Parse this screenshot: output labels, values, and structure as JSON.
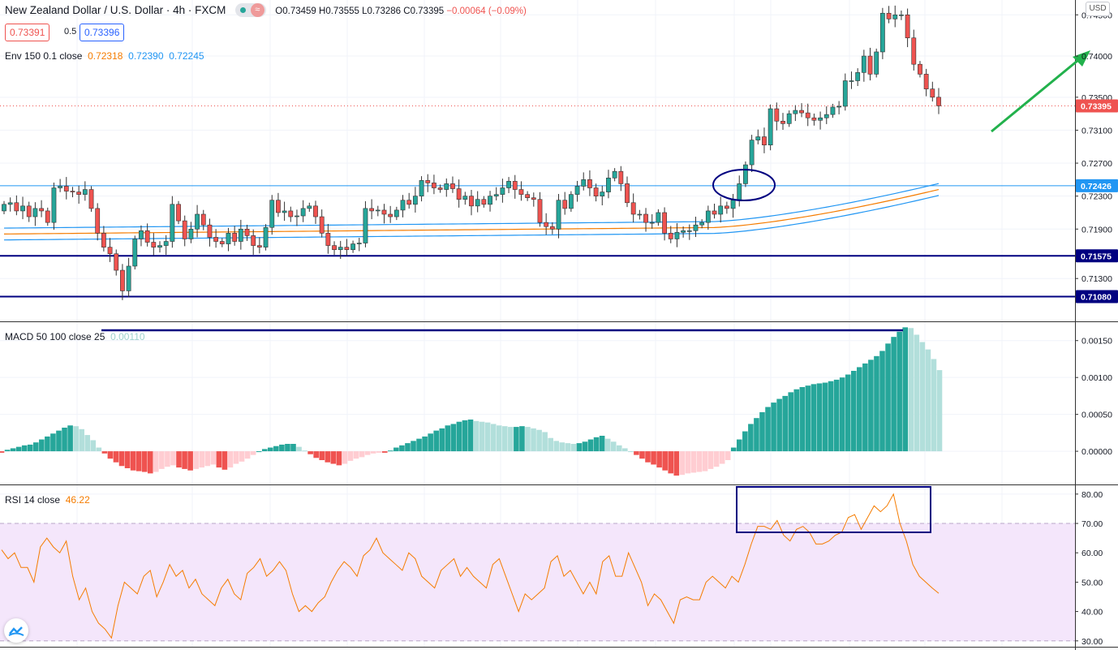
{
  "header": {
    "title": "New Zealand Dollar / U.S. Dollar · 4h · FXCM",
    "ohlc": {
      "o": "O0.73459",
      "h": "H0.73555",
      "l": "L0.73286",
      "c": "C0.73395",
      "chg": "−0.00064 (−0.09%)"
    },
    "bid": "0.73391",
    "spread": "0.5",
    "ask": "0.73396",
    "currency": "USD"
  },
  "indicators": {
    "envelope": {
      "label": "Env 150 0.1 close",
      "basis": "0.72318",
      "upper": "0.72390",
      "lower": "0.72245"
    },
    "macd": {
      "label": "MACD 50 100 close 25",
      "value": "0.00110"
    },
    "rsi": {
      "label": "RSI 14 close",
      "value": "46.22"
    }
  },
  "colors": {
    "up": "#26a69a",
    "down": "#ef5350",
    "basis": "#f57c00",
    "band": "#2196f3",
    "level": "#000080",
    "rsi_line": "#f57c00",
    "rsi_fill": "#f4e6fb"
  },
  "chart_data": [
    {
      "type": "candlestick",
      "title": "New Zealand Dollar / U.S. Dollar · 4h · FXCM",
      "ylim": [
        0.7078,
        0.7468
      ],
      "y_ticks": [
        "0.74500",
        "0.74000",
        "0.73500",
        "0.73100",
        "0.72700",
        "0.72300",
        "0.71900",
        "0.71300",
        "0.71080"
      ],
      "price_labels": [
        {
          "value": "0.73395",
          "kind": "last",
          "color": "#ef5350"
        },
        {
          "value": "0.72426",
          "kind": "level",
          "color": "#2196f3"
        },
        {
          "value": "0.71575",
          "kind": "level",
          "color": "#000080"
        },
        {
          "value": "0.71080",
          "kind": "level",
          "color": "#000080"
        }
      ],
      "levels": [
        0.72426,
        0.71575,
        0.7108
      ],
      "closes": [
        0.722,
        0.7222,
        0.7212,
        0.7218,
        0.7205,
        0.7215,
        0.7212,
        0.7198,
        0.724,
        0.7242,
        0.7236,
        0.7235,
        0.7232,
        0.7238,
        0.7215,
        0.7185,
        0.7168,
        0.716,
        0.714,
        0.7115,
        0.7145,
        0.7178,
        0.7188,
        0.7174,
        0.7168,
        0.717,
        0.7175,
        0.722,
        0.72,
        0.7178,
        0.719,
        0.7208,
        0.7195,
        0.718,
        0.7175,
        0.7172,
        0.7185,
        0.7175,
        0.719,
        0.7182,
        0.717,
        0.7168,
        0.7192,
        0.7225,
        0.721,
        0.7212,
        0.7205,
        0.7206,
        0.7215,
        0.7218,
        0.7205,
        0.7185,
        0.717,
        0.7165,
        0.7168,
        0.7165,
        0.7172,
        0.7173,
        0.7215,
        0.7212,
        0.7213,
        0.7208,
        0.7205,
        0.7213,
        0.7225,
        0.722,
        0.723,
        0.7249,
        0.7246,
        0.724,
        0.7238,
        0.7245,
        0.7239,
        0.7226,
        0.723,
        0.7218,
        0.7226,
        0.722,
        0.723,
        0.7232,
        0.724,
        0.7248,
        0.7238,
        0.7232,
        0.7228,
        0.7226,
        0.7198,
        0.7193,
        0.719,
        0.7225,
        0.7215,
        0.7232,
        0.7242,
        0.725,
        0.724,
        0.723,
        0.7235,
        0.7252,
        0.726,
        0.7245,
        0.7222,
        0.7208,
        0.7208,
        0.7198,
        0.7198,
        0.721,
        0.7185,
        0.7178,
        0.7186,
        0.7188,
        0.7188,
        0.7195,
        0.7198,
        0.7212,
        0.7208,
        0.7218,
        0.7215,
        0.7225,
        0.7245,
        0.7268,
        0.7298,
        0.7302,
        0.7292,
        0.7336,
        0.7321,
        0.7318,
        0.733,
        0.7334,
        0.7331,
        0.7325,
        0.7322,
        0.7325,
        0.7329,
        0.7338,
        0.7339,
        0.737,
        0.737,
        0.738,
        0.74,
        0.7378,
        0.7405,
        0.7452,
        0.7445,
        0.745,
        0.745,
        0.7422,
        0.739,
        0.7378,
        0.736,
        0.735,
        0.73395
      ],
      "envelope_series": [
        "basis",
        "upper",
        "lower"
      ]
    },
    {
      "type": "bar",
      "title": "MACD 50 100 close 25",
      "ylim": [
        -0.00045,
        0.00175
      ],
      "y_ticks": [
        "0.00150",
        "0.00100",
        "0.00050",
        "0.00000"
      ],
      "values": [
        -2e-05,
        2e-05,
        4e-05,
        6e-05,
        8e-05,
        9e-05,
        0.00012,
        0.00016,
        0.0002,
        0.00024,
        0.00028,
        0.00032,
        0.00035,
        0.00034,
        0.0003,
        0.00022,
        0.00015,
        5e-05,
        -3e-05,
        -0.0001,
        -0.00015,
        -0.0002,
        -0.00023,
        -0.00026,
        -0.00027,
        -0.00028,
        -0.0003,
        -0.00028,
        -0.00024,
        -0.00021,
        -0.00019,
        -0.00022,
        -0.00024,
        -0.00026,
        -0.00024,
        -0.00022,
        -0.0002,
        -0.00018,
        -0.00022,
        -0.00025,
        -0.00022,
        -0.00017,
        -0.00014,
        -0.0001,
        -5e-05,
        0.0,
        3e-05,
        5e-05,
        7e-05,
        9e-05,
        0.0001,
        0.0001,
        6e-05,
        1e-05,
        -4e-05,
        -9e-05,
        -0.00012,
        -0.00015,
        -0.00017,
        -0.00019,
        -0.00017,
        -0.00013,
        -0.0001,
        -8e-05,
        -5e-05,
        -3e-05,
        -2e-05,
        -2e-05,
        1e-05,
        5e-05,
        8e-05,
        0.00011,
        0.00014,
        0.00017,
        0.0002,
        0.00024,
        0.00028,
        0.00031,
        0.00035,
        0.00037,
        0.0004,
        0.00042,
        0.00043,
        0.00041,
        0.0004,
        0.00039,
        0.00037,
        0.00035,
        0.00034,
        0.00033,
        0.00033,
        0.00034,
        0.00033,
        0.00031,
        0.00029,
        0.00026,
        0.00018,
        0.00014,
        0.00012,
        0.00011,
        0.0001,
        0.00011,
        0.00013,
        0.00016,
        0.00019,
        0.00021,
        0.00017,
        0.00013,
        8e-05,
        4e-05,
        0.0,
        -5e-05,
        -0.0001,
        -0.00015,
        -0.00018,
        -0.00022,
        -0.00026,
        -0.0003,
        -0.00033,
        -0.00032,
        -0.0003,
        -0.00029,
        -0.00028,
        -0.00027,
        -0.00024,
        -0.00021,
        -0.00017,
        -0.00012,
        5e-05,
        0.00016,
        0.00027,
        0.00037,
        0.00045,
        0.00053,
        0.0006,
        0.00066,
        0.00071,
        0.00075,
        0.0008,
        0.00084,
        0.00087,
        0.00089,
        0.00091,
        0.00092,
        0.00093,
        0.00095,
        0.00097,
        0.001,
        0.00104,
        0.00109,
        0.00114,
        0.00119,
        0.00124,
        0.00129,
        0.00136,
        0.00146,
        0.00155,
        0.00162,
        0.00168,
        0.00167,
        0.00158,
        0.00148,
        0.00138,
        0.00125,
        0.0011
      ]
    },
    {
      "type": "line",
      "title": "RSI 14 close",
      "ylim": [
        28,
        83
      ],
      "y_ticks": [
        "80.00",
        "70.00",
        "60.00",
        "50.00",
        "40.00",
        "30.00"
      ],
      "band": [
        30,
        70
      ],
      "values": [
        61,
        58,
        60,
        55,
        55,
        50,
        62,
        65,
        62,
        60,
        64,
        52,
        44,
        48,
        40,
        36,
        34,
        31,
        42,
        50,
        48,
        46,
        52,
        54,
        45,
        50,
        56,
        52,
        54,
        48,
        51,
        46,
        44,
        42,
        48,
        51,
        46,
        44,
        53,
        55,
        58,
        52,
        54,
        57,
        54,
        46,
        40,
        42,
        40,
        43,
        45,
        50,
        54,
        57,
        55,
        52,
        59,
        61,
        65,
        60,
        58,
        56,
        54,
        60,
        58,
        52,
        50,
        48,
        54,
        56,
        58,
        52,
        55,
        52,
        50,
        48,
        56,
        58,
        52,
        46,
        40,
        46,
        44,
        46,
        48,
        57,
        59,
        52,
        54,
        50,
        46,
        50,
        46,
        57,
        59,
        52,
        52,
        60,
        55,
        50,
        42,
        46,
        44,
        40,
        36,
        44,
        45,
        44,
        44,
        50,
        52,
        50,
        48,
        52,
        50,
        56,
        63,
        69,
        69,
        68,
        71,
        66,
        64,
        68,
        69,
        67,
        63,
        63,
        64,
        66,
        67,
        72,
        73,
        68,
        72,
        76,
        74,
        76,
        80,
        70,
        64,
        56,
        52,
        50,
        48,
        46.22
      ]
    }
  ],
  "annotations": {
    "ellipse": "breakout",
    "rsi_box": "overbought",
    "macd_line": "macd peak",
    "arrow": "up-trend"
  },
  "x_ticks": [
    "",
    "",
    "",
    "",
    "",
    "",
    "",
    "",
    "",
    "",
    "",
    ""
  ]
}
